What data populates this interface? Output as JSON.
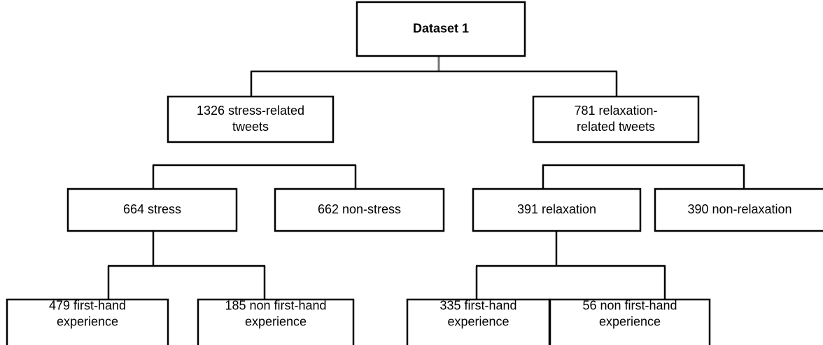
{
  "nodes": [
    {
      "lines": [
        "Dataset 1"
      ]
    },
    {
      "lines": [
        "1326 stress-related",
        "tweets"
      ]
    },
    {
      "lines": [
        "781 relaxation-",
        "related tweets"
      ]
    },
    {
      "lines": [
        "664 stress"
      ]
    },
    {
      "lines": [
        "662 non-stress"
      ]
    },
    {
      "lines": [
        "391 relaxation"
      ]
    },
    {
      "lines": [
        "390 non-relaxation"
      ]
    },
    {
      "lines": [
        "479 first-hand",
        "experience"
      ]
    },
    {
      "lines": [
        "185 non first-hand",
        "experience"
      ]
    },
    {
      "lines": [
        "335 first-hand",
        "experience"
      ]
    },
    {
      "lines": [
        "56 non first-hand",
        "experience"
      ]
    }
  ]
}
